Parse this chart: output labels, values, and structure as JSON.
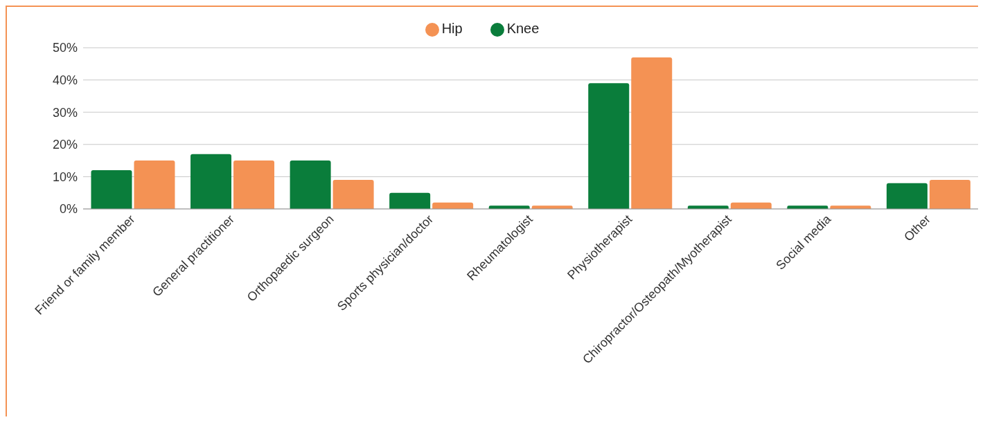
{
  "chart_data": {
    "type": "bar",
    "categories": [
      "Friend or family member",
      "General practitioner",
      "Orthopaedic surgeon",
      "Sports physician/doctor",
      "Rheumatologist",
      "Physiotherapist",
      "Chiropractor/Osteopath/Myotherapist",
      "Social media",
      "Other"
    ],
    "series": [
      {
        "name": "Knee",
        "color": "#0a7d3b",
        "values": [
          12,
          17,
          15,
          5,
          1,
          39,
          1,
          1,
          8
        ]
      },
      {
        "name": "Hip",
        "color": "#f49254",
        "values": [
          15,
          15,
          9,
          2,
          1,
          47,
          2,
          1,
          9
        ]
      }
    ],
    "ylim": [
      0,
      50
    ],
    "yticks": [
      {
        "value": 0,
        "label": "0%"
      },
      {
        "value": 10,
        "label": "10%"
      },
      {
        "value": 20,
        "label": "20%"
      },
      {
        "value": 30,
        "label": "30%"
      },
      {
        "value": 40,
        "label": "40%"
      },
      {
        "value": 50,
        "label": "50%"
      }
    ],
    "grid": "y",
    "legend": "top"
  }
}
